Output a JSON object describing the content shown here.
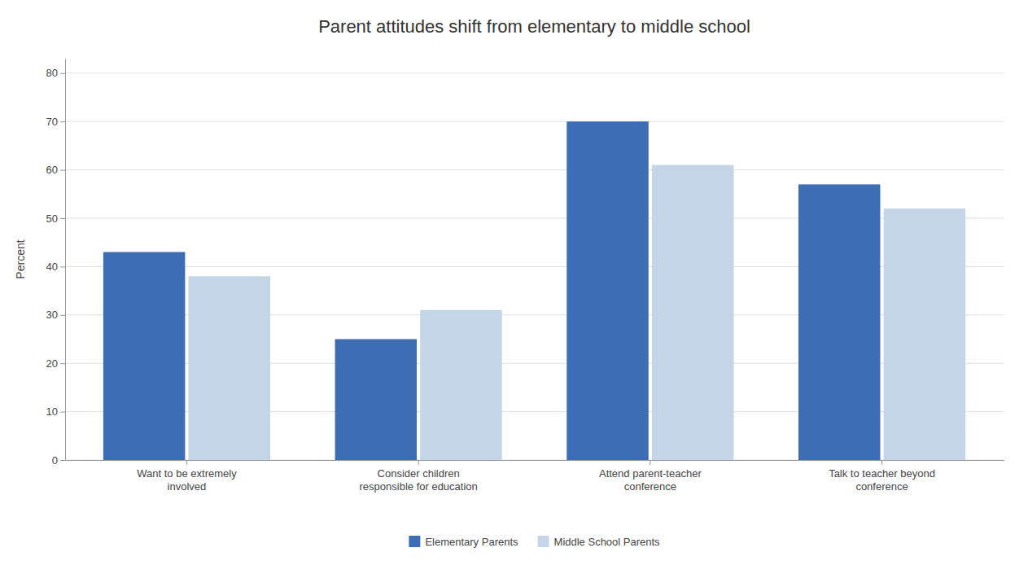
{
  "chart_data": {
    "type": "bar",
    "title": "Parent attitudes shift from elementary to middle school",
    "ylabel": "Percent",
    "categories": [
      "Want to be extremely\ninvolved",
      "Consider children\nresponsible for education",
      "Attend parent-teacher\nconference",
      "Talk to teacher beyond\nconference"
    ],
    "series": [
      {
        "name": "Elementary Parents",
        "color": "#3D6DB5",
        "values": [
          43,
          25,
          70,
          57
        ]
      },
      {
        "name": "Middle School Parents",
        "color": "#C5D5E8",
        "values": [
          38,
          31,
          61,
          52
        ]
      }
    ],
    "ylim": [
      0,
      83
    ],
    "yticks": [
      0,
      10,
      20,
      30,
      40,
      50,
      60,
      70,
      80
    ],
    "grid": true,
    "legend": "bottom"
  }
}
